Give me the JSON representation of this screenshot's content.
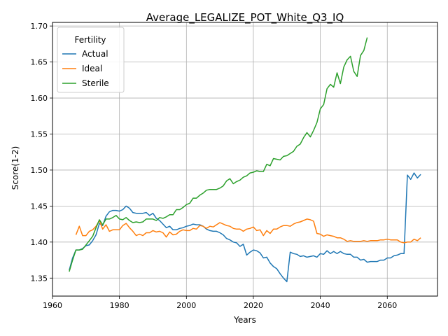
{
  "chart_data": {
    "type": "line",
    "title": "Average_LEGALIZE_POT_White_Q3_IQ",
    "xlabel": "Years",
    "ylabel": "Score(1-2)",
    "xlim": [
      1960,
      2075
    ],
    "ylim": [
      1.325,
      1.705
    ],
    "xticks": [
      1960,
      1980,
      2000,
      2020,
      2040,
      2060
    ],
    "xtick_labels": [
      "1960",
      "1980",
      "2000",
      "2020",
      "2040",
      "2060"
    ],
    "yticks": [
      1.35,
      1.4,
      1.45,
      1.5,
      1.55,
      1.6,
      1.65,
      1.7
    ],
    "ytick_labels": [
      "1.35",
      "1.40",
      "1.45",
      "1.50",
      "1.55",
      "1.60",
      "1.65",
      "1.70"
    ],
    "grid": true,
    "legend": {
      "title": "Fertility",
      "position": "upper-left"
    },
    "series": [
      {
        "name": "Actual",
        "color": "#1f77b4",
        "points": [
          [
            1965,
            1.361
          ],
          [
            1966,
            1.378
          ],
          [
            1967,
            1.389
          ],
          [
            1968,
            1.389
          ],
          [
            1969,
            1.391
          ],
          [
            1970,
            1.395
          ],
          [
            1971,
            1.396
          ],
          [
            1972,
            1.402
          ],
          [
            1973,
            1.41
          ],
          [
            1974,
            1.426
          ],
          [
            1975,
            1.423
          ],
          [
            1976,
            1.436
          ],
          [
            1977,
            1.442
          ],
          [
            1978,
            1.444
          ],
          [
            1979,
            1.444
          ],
          [
            1980,
            1.443
          ],
          [
            1981,
            1.445
          ],
          [
            1982,
            1.45
          ],
          [
            1983,
            1.447
          ],
          [
            1984,
            1.441
          ],
          [
            1985,
            1.44
          ],
          [
            1986,
            1.44
          ],
          [
            1987,
            1.44
          ],
          [
            1988,
            1.441
          ],
          [
            1989,
            1.437
          ],
          [
            1990,
            1.44
          ],
          [
            1991,
            1.433
          ],
          [
            1992,
            1.43
          ],
          [
            1993,
            1.425
          ],
          [
            1994,
            1.42
          ],
          [
            1995,
            1.422
          ],
          [
            1996,
            1.417
          ],
          [
            1997,
            1.417
          ],
          [
            1998,
            1.419
          ],
          [
            1999,
            1.42
          ],
          [
            2000,
            1.422
          ],
          [
            2001,
            1.423
          ],
          [
            2002,
            1.425
          ],
          [
            2003,
            1.424
          ],
          [
            2004,
            1.424
          ],
          [
            2005,
            1.422
          ],
          [
            2006,
            1.418
          ],
          [
            2007,
            1.416
          ],
          [
            2008,
            1.415
          ],
          [
            2009,
            1.415
          ],
          [
            2010,
            1.413
          ],
          [
            2011,
            1.41
          ],
          [
            2012,
            1.405
          ],
          [
            2013,
            1.403
          ],
          [
            2014,
            1.4
          ],
          [
            2015,
            1.399
          ],
          [
            2016,
            1.394
          ],
          [
            2017,
            1.397
          ],
          [
            2018,
            1.382
          ],
          [
            2019,
            1.386
          ],
          [
            2020,
            1.389
          ],
          [
            2021,
            1.388
          ],
          [
            2022,
            1.385
          ],
          [
            2023,
            1.378
          ],
          [
            2024,
            1.379
          ],
          [
            2025,
            1.371
          ],
          [
            2026,
            1.366
          ],
          [
            2027,
            1.363
          ],
          [
            2028,
            1.356
          ],
          [
            2029,
            1.35
          ],
          [
            2030,
            1.345
          ],
          [
            2031,
            1.386
          ],
          [
            2032,
            1.384
          ],
          [
            2033,
            1.383
          ],
          [
            2034,
            1.38
          ],
          [
            2035,
            1.381
          ],
          [
            2036,
            1.379
          ],
          [
            2037,
            1.38
          ],
          [
            2038,
            1.381
          ],
          [
            2039,
            1.379
          ],
          [
            2040,
            1.384
          ],
          [
            2041,
            1.383
          ],
          [
            2042,
            1.388
          ],
          [
            2043,
            1.384
          ],
          [
            2044,
            1.387
          ],
          [
            2045,
            1.384
          ],
          [
            2046,
            1.387
          ],
          [
            2047,
            1.384
          ],
          [
            2048,
            1.383
          ],
          [
            2049,
            1.383
          ],
          [
            2050,
            1.379
          ],
          [
            2051,
            1.379
          ],
          [
            2052,
            1.375
          ],
          [
            2053,
            1.376
          ],
          [
            2054,
            1.372
          ],
          [
            2055,
            1.373
          ],
          [
            2056,
            1.373
          ],
          [
            2057,
            1.373
          ],
          [
            2058,
            1.375
          ],
          [
            2059,
            1.375
          ],
          [
            2060,
            1.378
          ],
          [
            2061,
            1.378
          ],
          [
            2062,
            1.381
          ],
          [
            2063,
            1.382
          ],
          [
            2064,
            1.384
          ],
          [
            2065,
            1.384
          ],
          [
            2066,
            1.493
          ],
          [
            2067,
            1.487
          ],
          [
            2068,
            1.496
          ],
          [
            2069,
            1.489
          ],
          [
            2070,
            1.494
          ]
        ]
      },
      {
        "name": "Ideal",
        "color": "#ff7f0e",
        "points": [
          [
            1967,
            1.41
          ],
          [
            1968,
            1.422
          ],
          [
            1969,
            1.409
          ],
          [
            1970,
            1.409
          ],
          [
            1971,
            1.415
          ],
          [
            1972,
            1.417
          ],
          [
            1973,
            1.422
          ],
          [
            1974,
            1.43
          ],
          [
            1975,
            1.418
          ],
          [
            1976,
            1.424
          ],
          [
            1977,
            1.415
          ],
          [
            1978,
            1.417
          ],
          [
            1979,
            1.417
          ],
          [
            1980,
            1.417
          ],
          [
            1981,
            1.423
          ],
          [
            1982,
            1.426
          ],
          [
            1983,
            1.42
          ],
          [
            1984,
            1.415
          ],
          [
            1985,
            1.409
          ],
          [
            1986,
            1.411
          ],
          [
            1987,
            1.409
          ],
          [
            1988,
            1.413
          ],
          [
            1989,
            1.413
          ],
          [
            1990,
            1.416
          ],
          [
            1991,
            1.414
          ],
          [
            1992,
            1.415
          ],
          [
            1993,
            1.413
          ],
          [
            1994,
            1.407
          ],
          [
            1995,
            1.414
          ],
          [
            1996,
            1.41
          ],
          [
            1997,
            1.411
          ],
          [
            1998,
            1.415
          ],
          [
            1999,
            1.417
          ],
          [
            2000,
            1.416
          ],
          [
            2001,
            1.416
          ],
          [
            2002,
            1.419
          ],
          [
            2003,
            1.418
          ],
          [
            2004,
            1.423
          ],
          [
            2005,
            1.422
          ],
          [
            2006,
            1.419
          ],
          [
            2007,
            1.422
          ],
          [
            2008,
            1.421
          ],
          [
            2009,
            1.424
          ],
          [
            2010,
            1.427
          ],
          [
            2011,
            1.425
          ],
          [
            2012,
            1.423
          ],
          [
            2013,
            1.422
          ],
          [
            2014,
            1.419
          ],
          [
            2015,
            1.418
          ],
          [
            2016,
            1.418
          ],
          [
            2017,
            1.415
          ],
          [
            2018,
            1.418
          ],
          [
            2019,
            1.419
          ],
          [
            2020,
            1.421
          ],
          [
            2021,
            1.416
          ],
          [
            2022,
            1.417
          ],
          [
            2023,
            1.409
          ],
          [
            2024,
            1.416
          ],
          [
            2025,
            1.412
          ],
          [
            2026,
            1.418
          ],
          [
            2027,
            1.418
          ],
          [
            2028,
            1.421
          ],
          [
            2029,
            1.423
          ],
          [
            2030,
            1.423
          ],
          [
            2031,
            1.422
          ],
          [
            2032,
            1.425
          ],
          [
            2033,
            1.427
          ],
          [
            2034,
            1.428
          ],
          [
            2035,
            1.43
          ],
          [
            2036,
            1.432
          ],
          [
            2037,
            1.431
          ],
          [
            2038,
            1.429
          ],
          [
            2039,
            1.412
          ],
          [
            2040,
            1.411
          ],
          [
            2041,
            1.408
          ],
          [
            2042,
            1.41
          ],
          [
            2043,
            1.409
          ],
          [
            2044,
            1.408
          ],
          [
            2045,
            1.406
          ],
          [
            2046,
            1.406
          ],
          [
            2047,
            1.404
          ],
          [
            2048,
            1.401
          ],
          [
            2049,
            1.402
          ],
          [
            2050,
            1.401
          ],
          [
            2051,
            1.401
          ],
          [
            2052,
            1.401
          ],
          [
            2053,
            1.402
          ],
          [
            2054,
            1.401
          ],
          [
            2055,
            1.402
          ],
          [
            2056,
            1.402
          ],
          [
            2057,
            1.402
          ],
          [
            2058,
            1.403
          ],
          [
            2059,
            1.403
          ],
          [
            2060,
            1.404
          ],
          [
            2061,
            1.403
          ],
          [
            2062,
            1.403
          ],
          [
            2063,
            1.403
          ],
          [
            2064,
            1.4
          ],
          [
            2065,
            1.399
          ],
          [
            2066,
            1.4
          ],
          [
            2067,
            1.4
          ],
          [
            2068,
            1.404
          ],
          [
            2069,
            1.402
          ],
          [
            2070,
            1.406
          ]
        ]
      },
      {
        "name": "Sterile",
        "color": "#2ca02c",
        "points": [
          [
            1965,
            1.359
          ],
          [
            1966,
            1.375
          ],
          [
            1967,
            1.389
          ],
          [
            1968,
            1.389
          ],
          [
            1969,
            1.39
          ],
          [
            1970,
            1.396
          ],
          [
            1971,
            1.402
          ],
          [
            1972,
            1.408
          ],
          [
            1973,
            1.42
          ],
          [
            1974,
            1.431
          ],
          [
            1975,
            1.424
          ],
          [
            1976,
            1.432
          ],
          [
            1977,
            1.432
          ],
          [
            1978,
            1.434
          ],
          [
            1979,
            1.437
          ],
          [
            1980,
            1.432
          ],
          [
            1981,
            1.431
          ],
          [
            1982,
            1.434
          ],
          [
            1983,
            1.43
          ],
          [
            1984,
            1.427
          ],
          [
            1985,
            1.428
          ],
          [
            1986,
            1.427
          ],
          [
            1987,
            1.428
          ],
          [
            1988,
            1.432
          ],
          [
            1989,
            1.432
          ],
          [
            1990,
            1.432
          ],
          [
            1991,
            1.43
          ],
          [
            1992,
            1.434
          ],
          [
            1993,
            1.433
          ],
          [
            1994,
            1.435
          ],
          [
            1995,
            1.438
          ],
          [
            1996,
            1.438
          ],
          [
            1997,
            1.445
          ],
          [
            1998,
            1.445
          ],
          [
            1999,
            1.448
          ],
          [
            2000,
            1.452
          ],
          [
            2001,
            1.454
          ],
          [
            2002,
            1.461
          ],
          [
            2003,
            1.461
          ],
          [
            2004,
            1.465
          ],
          [
            2005,
            1.468
          ],
          [
            2006,
            1.472
          ],
          [
            2007,
            1.473
          ],
          [
            2008,
            1.473
          ],
          [
            2009,
            1.473
          ],
          [
            2010,
            1.475
          ],
          [
            2011,
            1.478
          ],
          [
            2012,
            1.485
          ],
          [
            2013,
            1.488
          ],
          [
            2014,
            1.481
          ],
          [
            2015,
            1.484
          ],
          [
            2016,
            1.486
          ],
          [
            2017,
            1.49
          ],
          [
            2018,
            1.492
          ],
          [
            2019,
            1.496
          ],
          [
            2020,
            1.497
          ],
          [
            2021,
            1.499
          ],
          [
            2022,
            1.498
          ],
          [
            2023,
            1.498
          ],
          [
            2024,
            1.508
          ],
          [
            2025,
            1.506
          ],
          [
            2026,
            1.516
          ],
          [
            2027,
            1.515
          ],
          [
            2028,
            1.514
          ],
          [
            2029,
            1.519
          ],
          [
            2030,
            1.52
          ],
          [
            2031,
            1.523
          ],
          [
            2032,
            1.526
          ],
          [
            2033,
            1.533
          ],
          [
            2034,
            1.536
          ],
          [
            2035,
            1.545
          ],
          [
            2036,
            1.552
          ],
          [
            2037,
            1.546
          ],
          [
            2038,
            1.555
          ],
          [
            2039,
            1.566
          ],
          [
            2040,
            1.585
          ],
          [
            2041,
            1.591
          ],
          [
            2042,
            1.613
          ],
          [
            2043,
            1.619
          ],
          [
            2044,
            1.615
          ],
          [
            2045,
            1.635
          ],
          [
            2046,
            1.62
          ],
          [
            2047,
            1.643
          ],
          [
            2048,
            1.653
          ],
          [
            2049,
            1.658
          ],
          [
            2050,
            1.637
          ],
          [
            2051,
            1.63
          ],
          [
            2052,
            1.659
          ],
          [
            2053,
            1.666
          ],
          [
            2054,
            1.684
          ]
        ]
      }
    ]
  }
}
